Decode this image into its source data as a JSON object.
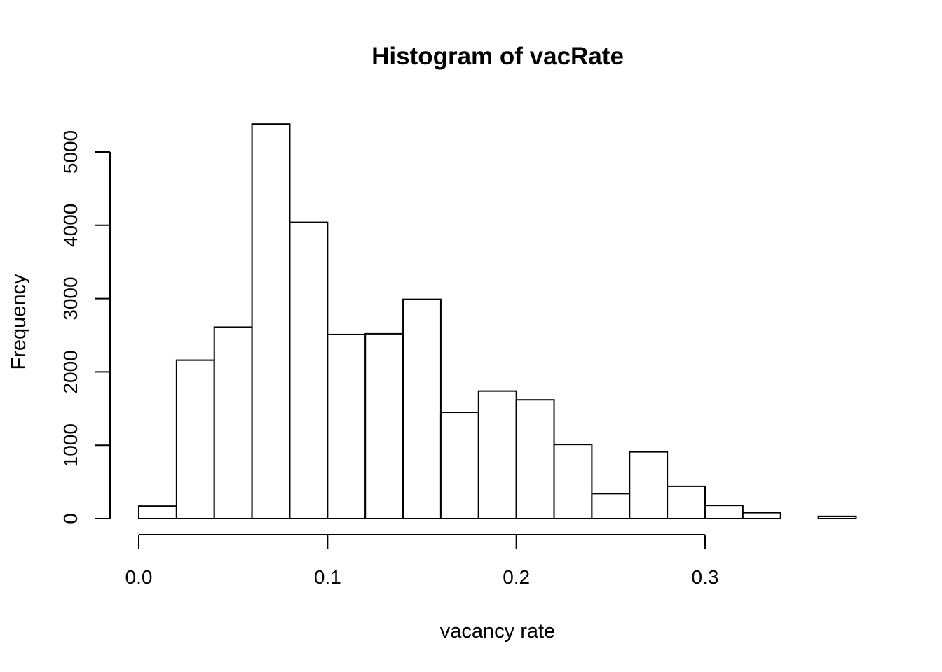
{
  "chart_data": {
    "type": "bar",
    "title": "Histogram of vacRate",
    "xlabel": "vacancy rate",
    "ylabel": "Frequency",
    "bin_edges": [
      0.0,
      0.02,
      0.04,
      0.06,
      0.08,
      0.1,
      0.12,
      0.14,
      0.16,
      0.18,
      0.2,
      0.22,
      0.24,
      0.26,
      0.28,
      0.3,
      0.32,
      0.34,
      0.36,
      0.38
    ],
    "values": [
      170,
      2160,
      2610,
      5380,
      4040,
      2510,
      2520,
      2990,
      1450,
      1740,
      1620,
      1010,
      340,
      910,
      440,
      180,
      80,
      0,
      30
    ],
    "xlim": [
      0.0,
      0.38
    ],
    "ylim": [
      0,
      5380
    ],
    "x_ticks": [
      0.0,
      0.1,
      0.2,
      0.3
    ],
    "x_tick_labels": [
      "0.0",
      "0.1",
      "0.2",
      "0.3"
    ],
    "y_ticks": [
      0,
      1000,
      2000,
      3000,
      4000,
      5000
    ],
    "y_tick_labels": [
      "0",
      "1000",
      "2000",
      "3000",
      "4000",
      "5000"
    ],
    "grid": false,
    "legend": "none"
  }
}
